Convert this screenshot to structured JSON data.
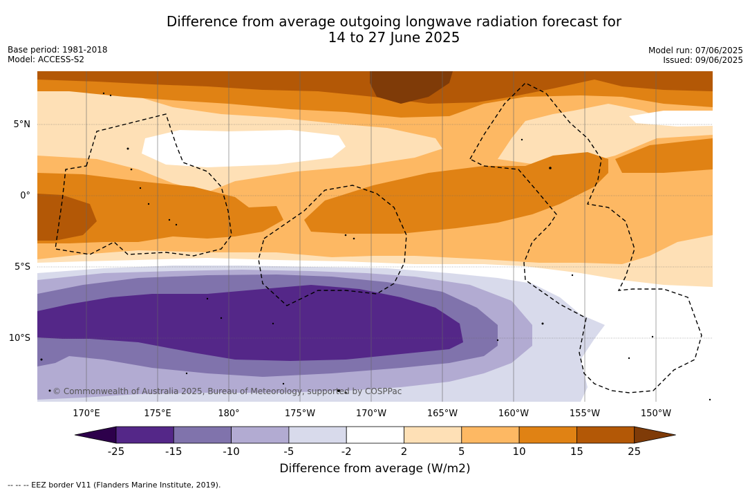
{
  "title_line1": "Difference from average outgoing longwave radiation forecast for",
  "title_line2": "14 to 27 June 2025",
  "meta": {
    "base_period": "Base period: 1981-2018",
    "model": "Model: ACCESS-S2",
    "model_run": "Model run: 07/06/2025",
    "issued": "Issued: 09/06/2025"
  },
  "copyright": "© Commonwealth of Australia 2025, Bureau of Meteorology, supported by COSPPac",
  "lat_labels": [
    "5°N",
    "0°",
    "5°S",
    "10°S"
  ],
  "lon_labels": [
    "170°E",
    "175°E",
    "180°",
    "175°W",
    "170°W",
    "165°W",
    "160°W",
    "155°W",
    "150°W"
  ],
  "colorbar": {
    "title": "Difference from average (W/m2)",
    "ticks": [
      "-25",
      "-15",
      "-10",
      "-5",
      "-2",
      "2",
      "5",
      "10",
      "15",
      "25"
    ],
    "colors": [
      "#2d004b",
      "#542788",
      "#8073ac",
      "#b2abd2",
      "#d8daeb",
      "#ffffff",
      "#fee0b6",
      "#fdb863",
      "#e08214",
      "#b35806",
      "#7f3b08"
    ]
  },
  "legend_note": "--  --  -- EEZ border V11 (Flanders Marine Institute, 2019)."
}
